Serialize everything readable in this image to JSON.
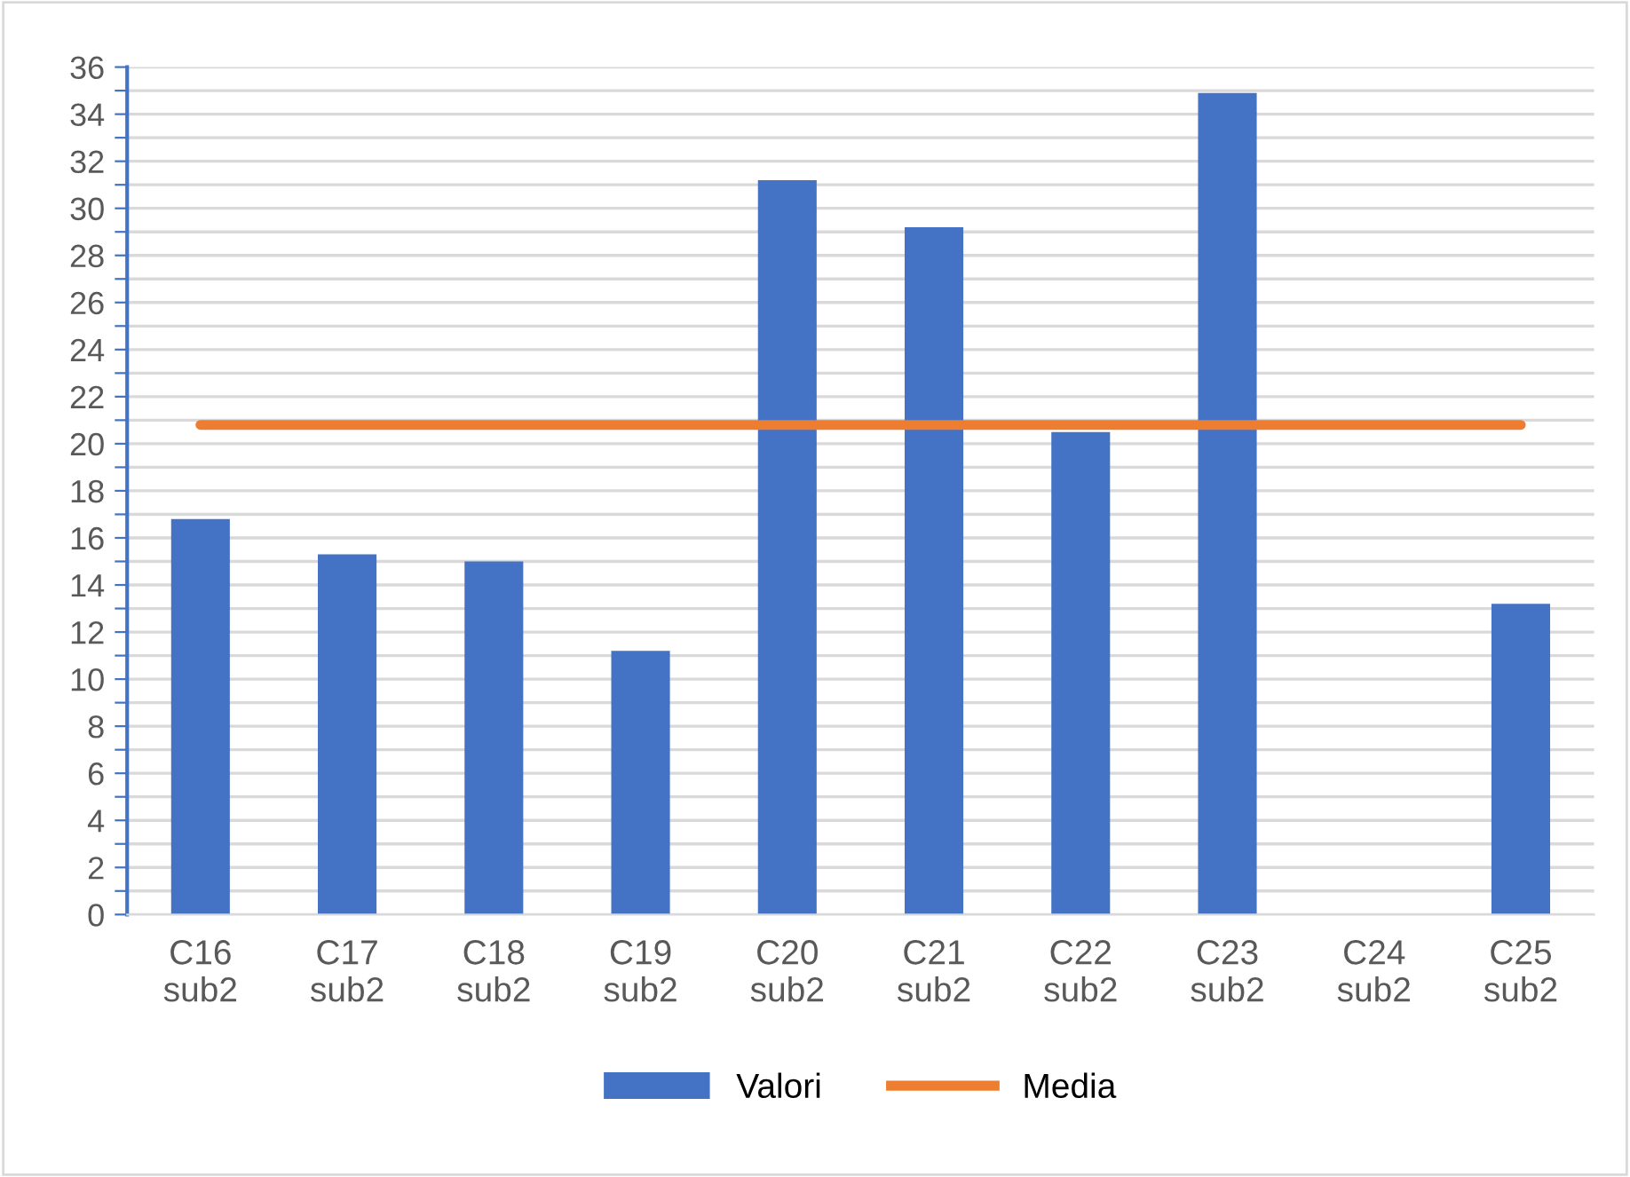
{
  "chart_data": {
    "type": "bar",
    "categories": [
      "C16\nsub2",
      "C17\nsub2",
      "C18\nsub2",
      "C19\nsub2",
      "C20\nsub2",
      "C21\nsub2",
      "C22\nsub2",
      "C23\nsub2",
      "C24\nsub2",
      "C25\nsub2"
    ],
    "series": [
      {
        "name": "Valori",
        "color": "#4472c4",
        "values": [
          16.8,
          15.3,
          15.0,
          11.2,
          31.2,
          29.2,
          20.5,
          34.9,
          null,
          13.2
        ]
      },
      {
        "name": "Media",
        "type": "line",
        "color": "#ed7d31",
        "values": [
          20.8,
          20.8,
          20.8,
          20.8,
          20.8,
          20.8,
          20.8,
          20.8,
          20.8,
          20.8
        ]
      }
    ],
    "ylim": [
      0,
      36
    ],
    "yticks": [
      0,
      {
        "value": 1,
        "label": null
      },
      2,
      {
        "value": 3,
        "label": null
      },
      4,
      {
        "value": 5,
        "label": null
      },
      6,
      {
        "value": 7,
        "label": null
      },
      8,
      {
        "value": 9,
        "label": null
      },
      10,
      {
        "value": 11,
        "label": null
      },
      12,
      {
        "value": 13,
        "label": null
      },
      14,
      {
        "value": 15,
        "label": null
      },
      16,
      {
        "value": 17,
        "label": null
      },
      18,
      {
        "value": 19,
        "label": null
      },
      20,
      {
        "value": 21,
        "label": null
      },
      22,
      {
        "value": 23,
        "label": null
      },
      24,
      {
        "value": 25,
        "label": null
      },
      26,
      {
        "value": 27,
        "label": null
      },
      28,
      {
        "value": 29,
        "label": null
      },
      30,
      {
        "value": 31,
        "label": null
      },
      32,
      {
        "value": 33,
        "label": null
      },
      34,
      {
        "value": 35,
        "label": null
      },
      36
    ],
    "grid": "y",
    "legend": "bottom"
  }
}
